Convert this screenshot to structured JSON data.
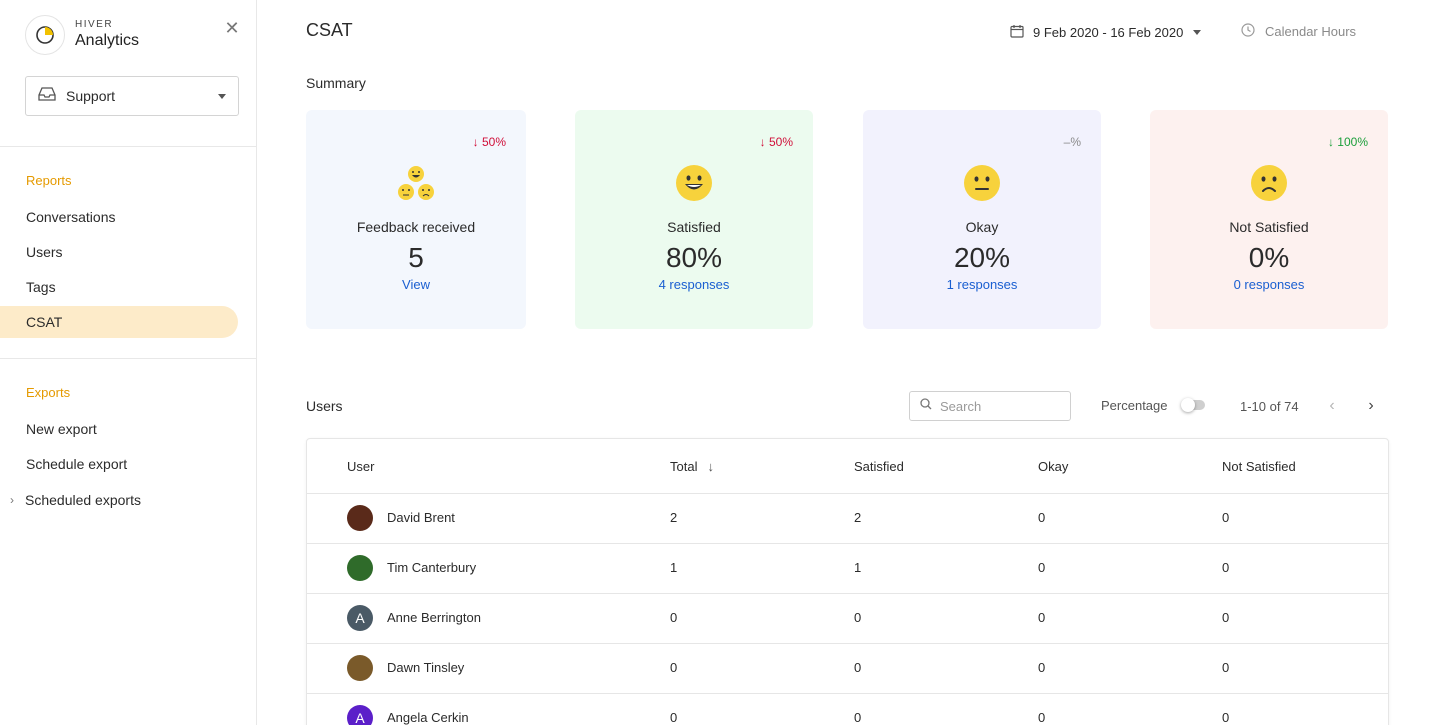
{
  "brand": {
    "small": "HIVER",
    "big": "Analytics"
  },
  "mailbox": {
    "label": "Support"
  },
  "sidebar": {
    "reports_title": "Reports",
    "reports_items": [
      "Conversations",
      "Users",
      "Tags",
      "CSAT"
    ],
    "exports_title": "Exports",
    "exports_items": [
      "New export",
      "Schedule export",
      "Scheduled exports"
    ]
  },
  "header": {
    "title": "CSAT",
    "date_range": "9 Feb 2020 - 16 Feb 2020",
    "calendar_hours": "Calendar Hours"
  },
  "summary": {
    "label": "Summary",
    "cards": [
      {
        "delta": "↓ 50%",
        "name": "Feedback received",
        "value": "5",
        "link": "View",
        "bg": "#f3f7fd",
        "delta_color": "#d0103a"
      },
      {
        "delta": "↓ 50%",
        "name": "Satisfied",
        "value": "80%",
        "link": "4 responses",
        "bg": "#ecfbef",
        "delta_color": "#d0103a"
      },
      {
        "delta": "–%",
        "name": "Okay",
        "value": "20%",
        "link": "1 responses",
        "bg": "#f2f2fd",
        "delta_color": "#8a8a8a"
      },
      {
        "delta": "↓ 100%",
        "name": "Not Satisfied",
        "value": "0%",
        "link": "0 responses",
        "bg": "#fdf1ef",
        "delta_color": "#1a9e3a"
      }
    ]
  },
  "users": {
    "label": "Users",
    "search_placeholder": "Search",
    "percentage_label": "Percentage",
    "page_count": "1-10 of 74",
    "columns": [
      "User",
      "Total",
      "Satisfied",
      "Okay",
      "Not Satisfied"
    ],
    "rows": [
      {
        "name": "David Brent",
        "total": "2",
        "satisfied": "2",
        "okay": "0",
        "not_satisfied": "0",
        "avatar_initial": "",
        "avatar_color": "#5a2a1a"
      },
      {
        "name": "Tim Canterbury",
        "total": "1",
        "satisfied": "1",
        "okay": "0",
        "not_satisfied": "0",
        "avatar_initial": "",
        "avatar_color": "#2f6b2a"
      },
      {
        "name": "Anne Berrington",
        "total": "0",
        "satisfied": "0",
        "okay": "0",
        "not_satisfied": "0",
        "avatar_initial": "A",
        "avatar_color": "#4a5a66"
      },
      {
        "name": "Dawn Tinsley",
        "total": "0",
        "satisfied": "0",
        "okay": "0",
        "not_satisfied": "0",
        "avatar_initial": "",
        "avatar_color": "#7a5a2a"
      },
      {
        "name": "Angela Cerkin",
        "total": "0",
        "satisfied": "0",
        "okay": "0",
        "not_satisfied": "0",
        "avatar_initial": "A",
        "avatar_color": "#5b1fc9"
      }
    ]
  },
  "colors": {
    "accent": "#e59a00",
    "link": "#1a5fd1",
    "active_nav": "#fdebc9"
  }
}
